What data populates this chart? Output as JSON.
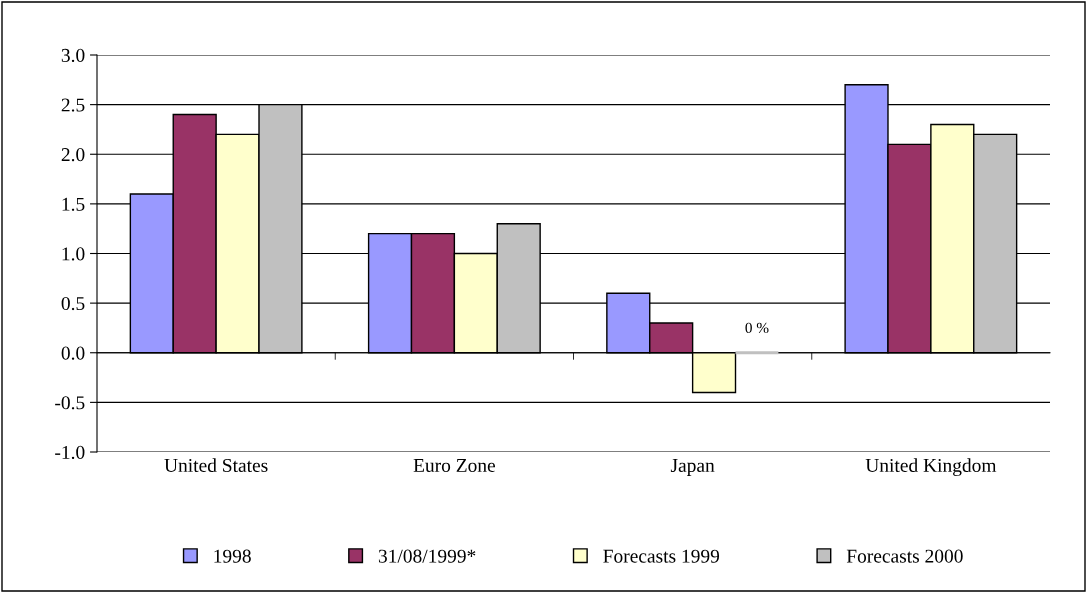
{
  "chart_data": {
    "type": "bar",
    "categories": [
      "United States",
      "Euro Zone",
      "Japan",
      "United Kingdom"
    ],
    "series": [
      {
        "name": "1998",
        "color": "#9999ff",
        "values": [
          1.6,
          1.2,
          0.6,
          2.7
        ]
      },
      {
        "name": "31/08/1999*",
        "color": "#993366",
        "values": [
          2.4,
          1.2,
          0.3,
          2.1
        ]
      },
      {
        "name": "Forecasts 1999",
        "color": "#ffffcc",
        "values": [
          2.2,
          1.0,
          -0.4,
          2.3
        ]
      },
      {
        "name": "Forecasts 2000",
        "color": "#c0c0c0",
        "values": [
          2.5,
          1.3,
          0,
          2.2
        ]
      }
    ],
    "ylim": [
      -1.0,
      3.0
    ],
    "yticks": [
      {
        "value": -1.0,
        "label": "-1.0"
      },
      {
        "value": -0.5,
        "label": "-0.5"
      },
      {
        "value": 0,
        "label": "0.0"
      },
      {
        "value": 0.5,
        "label": "0.5"
      },
      {
        "value": 1.0,
        "label": "1.0"
      },
      {
        "value": 1.5,
        "label": "1.5"
      },
      {
        "value": 2.0,
        "label": "2.0"
      },
      {
        "value": 2.5,
        "label": "2.5"
      },
      {
        "value": 3.0,
        "label": "3.0"
      }
    ],
    "grid": "y",
    "legend": "bottom",
    "annotations": [
      "0 %"
    ]
  }
}
